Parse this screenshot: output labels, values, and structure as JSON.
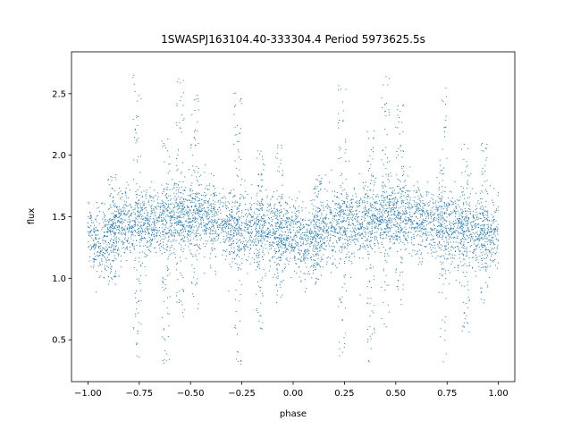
{
  "chart_data": {
    "type": "scatter",
    "title": "1SWASPJ163104.40-333304.4 Period 5973625.5s",
    "xlabel": "phase",
    "ylabel": "flux",
    "xlim": [
      -1.08,
      1.08
    ],
    "ylim": [
      0.16,
      2.84
    ],
    "xticks": [
      -1.0,
      -0.75,
      -0.5,
      -0.25,
      0.0,
      0.25,
      0.5,
      0.75,
      1.0
    ],
    "xtick_labels": [
      "−1.00",
      "−0.75",
      "−0.50",
      "−0.25",
      "0.00",
      "0.25",
      "0.50",
      "0.75",
      "1.00"
    ],
    "yticks": [
      0.5,
      1.0,
      1.5,
      2.0,
      2.5
    ],
    "ytick_labels": [
      "0.5",
      "1.0",
      "1.5",
      "2.0",
      "2.5"
    ],
    "grid": false,
    "marker_color": "#1f77b4",
    "series": [
      {
        "profile": [
          {
            "x": -1.0,
            "y": 1.38
          },
          {
            "x": -0.95,
            "y": 1.25
          },
          {
            "x": -0.9,
            "y": 1.32
          },
          {
            "x": -0.85,
            "y": 1.42
          },
          {
            "x": -0.8,
            "y": 1.44
          },
          {
            "x": -0.75,
            "y": 1.45
          },
          {
            "x": -0.7,
            "y": 1.44
          },
          {
            "x": -0.65,
            "y": 1.46
          },
          {
            "x": -0.6,
            "y": 1.48
          },
          {
            "x": -0.55,
            "y": 1.5
          },
          {
            "x": -0.5,
            "y": 1.5
          },
          {
            "x": -0.45,
            "y": 1.5
          },
          {
            "x": -0.4,
            "y": 1.47
          },
          {
            "x": -0.35,
            "y": 1.45
          },
          {
            "x": -0.3,
            "y": 1.43
          },
          {
            "x": -0.25,
            "y": 1.4
          },
          {
            "x": -0.2,
            "y": 1.42
          },
          {
            "x": -0.15,
            "y": 1.4
          },
          {
            "x": -0.1,
            "y": 1.38
          },
          {
            "x": -0.05,
            "y": 1.36
          },
          {
            "x": 0.0,
            "y": 1.38
          },
          {
            "x": 0.05,
            "y": 1.25
          },
          {
            "x": 0.1,
            "y": 1.32
          },
          {
            "x": 0.15,
            "y": 1.42
          },
          {
            "x": 0.2,
            "y": 1.44
          },
          {
            "x": 0.25,
            "y": 1.45
          },
          {
            "x": 0.3,
            "y": 1.44
          },
          {
            "x": 0.35,
            "y": 1.46
          },
          {
            "x": 0.4,
            "y": 1.48
          },
          {
            "x": 0.45,
            "y": 1.5
          },
          {
            "x": 0.5,
            "y": 1.5
          },
          {
            "x": 0.55,
            "y": 1.5
          },
          {
            "x": 0.6,
            "y": 1.47
          },
          {
            "x": 0.65,
            "y": 1.45
          },
          {
            "x": 0.7,
            "y": 1.43
          },
          {
            "x": 0.75,
            "y": 1.4
          },
          {
            "x": 0.8,
            "y": 1.42
          },
          {
            "x": 0.85,
            "y": 1.4
          },
          {
            "x": 0.9,
            "y": 1.38
          },
          {
            "x": 0.95,
            "y": 1.36
          },
          {
            "x": 1.0,
            "y": 1.38
          }
        ],
        "scatter_sd": 0.14,
        "n_points": 5200,
        "outlier_columns": [
          {
            "x": -0.88,
            "y_min": 0.95,
            "y_max": 1.85
          },
          {
            "x": -0.76,
            "y_min": 0.35,
            "y_max": 2.65
          },
          {
            "x": -0.62,
            "y_min": 0.3,
            "y_max": 2.2
          },
          {
            "x": -0.55,
            "y_min": 0.6,
            "y_max": 2.65
          },
          {
            "x": -0.48,
            "y_min": 0.75,
            "y_max": 2.5
          },
          {
            "x": -0.27,
            "y_min": 0.3,
            "y_max": 2.55
          },
          {
            "x": -0.16,
            "y_min": 0.55,
            "y_max": 2.1
          },
          {
            "x": -0.07,
            "y_min": 0.8,
            "y_max": 2.1
          },
          {
            "x": 0.12,
            "y_min": 0.95,
            "y_max": 1.85
          },
          {
            "x": 0.24,
            "y_min": 0.35,
            "y_max": 2.65
          },
          {
            "x": 0.38,
            "y_min": 0.3,
            "y_max": 2.2
          },
          {
            "x": 0.45,
            "y_min": 0.6,
            "y_max": 2.65
          },
          {
            "x": 0.52,
            "y_min": 0.75,
            "y_max": 2.5
          },
          {
            "x": 0.73,
            "y_min": 0.3,
            "y_max": 2.55
          },
          {
            "x": 0.84,
            "y_min": 0.55,
            "y_max": 2.1
          },
          {
            "x": 0.93,
            "y_min": 0.8,
            "y_max": 2.1
          }
        ]
      }
    ]
  }
}
